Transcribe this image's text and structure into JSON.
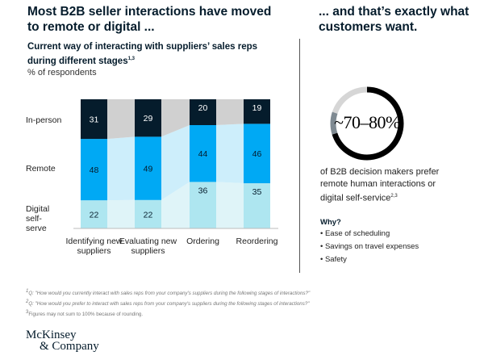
{
  "left_heading": "Most B2B seller interactions have moved to remote or digital ...",
  "right_heading": "... and that’s exactly what customers want.",
  "chart_subtitle": "Current way of interacting with suppliers’ sales reps during different stages",
  "chart_subtitle_sup": "1,3",
  "chart_unit": "% of respondents",
  "chart_data": {
    "type": "bar",
    "stacked": true,
    "categories": [
      "Identifying new suppliers",
      "Evaluating new suppliers",
      "Ordering",
      "Reordering"
    ],
    "series": [
      {
        "name": "Digital self-serve",
        "values": [
          22,
          22,
          36,
          35
        ],
        "color": "#aee6f0",
        "ribbon": "#dff4f8",
        "label_color": "#051c2c"
      },
      {
        "name": "Remote",
        "values": [
          48,
          49,
          44,
          46
        ],
        "color": "#00a9f4",
        "ribbon": "#cdeefb",
        "label_color": "#051c2c"
      },
      {
        "name": "In-person",
        "values": [
          31,
          29,
          20,
          19
        ],
        "color": "#051c2c",
        "ribbon": "#d0d0d0",
        "label_color": "#ffffff"
      }
    ],
    "ylim": [
      0,
      100
    ]
  },
  "stat": {
    "value": "~70–80%",
    "range_low": 70,
    "range_high": 80,
    "colors": {
      "main": "#000000",
      "range": "#7f8a92",
      "rest": "#d6d6d6"
    },
    "description": "of B2B decision makers prefer remote human interactions or digital self-service",
    "description_sup": "2,3"
  },
  "why": {
    "title": "Why?",
    "items": [
      "Ease of scheduling",
      "Savings on travel expenses",
      "Safety"
    ]
  },
  "footnotes": [
    {
      "mark": "1",
      "text": "Q: \"How would you currently interact with sales reps from your company's suppliers during the following stages of interactions?\""
    },
    {
      "mark": "2",
      "text": "Q: \"How would you prefer to interact with sales reps from your company's suppliers during the following stages of interactions?\""
    },
    {
      "mark": "3",
      "text": "Figures may not sum to 100% because of rounding."
    }
  ],
  "logo": {
    "line1": "McKinsey",
    "line2": "& Company"
  }
}
